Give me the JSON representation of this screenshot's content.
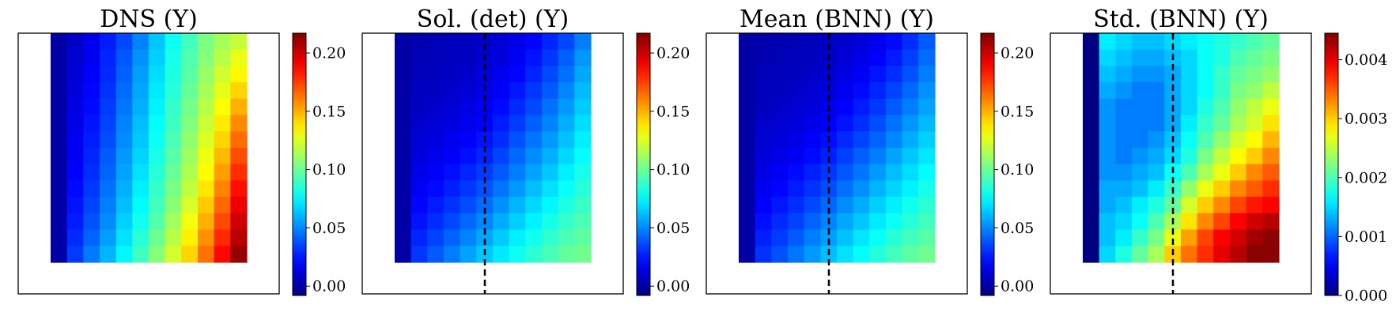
{
  "chart_data": [
    {
      "type": "heatmap",
      "title": "DNS (Y)",
      "grid_rows": 14,
      "grid_cols": 12,
      "colormap": "jet",
      "dashed_vertical_line": false,
      "colorbar": {
        "range": [
          -0.008,
          0.217
        ],
        "ticks": [
          "0.00",
          "0.05",
          "0.10",
          "0.15",
          "0.20"
        ],
        "tick_values": [
          0.0,
          0.05,
          0.1,
          0.15,
          0.2
        ]
      },
      "values": [
        [
          0.0,
          0.008,
          0.016,
          0.026,
          0.036,
          0.049,
          0.064,
          0.079,
          0.091,
          0.104,
          0.113,
          0.12
        ],
        [
          0.0,
          0.01,
          0.017,
          0.028,
          0.039,
          0.052,
          0.066,
          0.081,
          0.094,
          0.106,
          0.117,
          0.128
        ],
        [
          0.0,
          0.011,
          0.019,
          0.029,
          0.041,
          0.055,
          0.069,
          0.083,
          0.096,
          0.11,
          0.122,
          0.134
        ],
        [
          0.0,
          0.012,
          0.021,
          0.031,
          0.044,
          0.057,
          0.072,
          0.085,
          0.099,
          0.113,
          0.127,
          0.142
        ],
        [
          0.0,
          0.014,
          0.022,
          0.033,
          0.046,
          0.059,
          0.074,
          0.088,
          0.102,
          0.117,
          0.132,
          0.15
        ],
        [
          0.0,
          0.015,
          0.024,
          0.035,
          0.049,
          0.062,
          0.077,
          0.09,
          0.105,
          0.121,
          0.137,
          0.158
        ],
        [
          0.0,
          0.017,
          0.026,
          0.037,
          0.051,
          0.064,
          0.079,
          0.093,
          0.108,
          0.125,
          0.142,
          0.165
        ],
        [
          0.0,
          0.018,
          0.028,
          0.04,
          0.054,
          0.067,
          0.082,
          0.096,
          0.111,
          0.129,
          0.148,
          0.172
        ],
        [
          0.0,
          0.02,
          0.03,
          0.042,
          0.056,
          0.07,
          0.085,
          0.099,
          0.115,
          0.133,
          0.154,
          0.179
        ],
        [
          0.0,
          0.022,
          0.032,
          0.045,
          0.059,
          0.073,
          0.088,
          0.103,
          0.119,
          0.138,
          0.16,
          0.186
        ],
        [
          0.0,
          0.024,
          0.035,
          0.048,
          0.062,
          0.076,
          0.091,
          0.107,
          0.124,
          0.144,
          0.166,
          0.193
        ],
        [
          0.0,
          0.026,
          0.038,
          0.051,
          0.066,
          0.08,
          0.095,
          0.112,
          0.13,
          0.15,
          0.173,
          0.199
        ],
        [
          0.0,
          0.029,
          0.042,
          0.055,
          0.07,
          0.085,
          0.1,
          0.117,
          0.136,
          0.157,
          0.18,
          0.205
        ],
        [
          0.0,
          0.033,
          0.047,
          0.06,
          0.075,
          0.09,
          0.106,
          0.123,
          0.142,
          0.164,
          0.188,
          0.212
        ]
      ]
    },
    {
      "type": "heatmap",
      "title": "Sol. (det) (Y)",
      "grid_rows": 14,
      "grid_cols": 12,
      "colormap": "jet",
      "dashed_vertical_line": true,
      "colorbar": {
        "range": [
          -0.008,
          0.217
        ],
        "ticks": [
          "0.00",
          "0.05",
          "0.10",
          "0.15",
          "0.20"
        ],
        "tick_values": [
          0.0,
          0.05,
          0.1,
          0.15,
          0.2
        ]
      },
      "values": [
        [
          0.0,
          0.003,
          0.004,
          0.005,
          0.006,
          0.008,
          0.011,
          0.015,
          0.021,
          0.028,
          0.036,
          0.048
        ],
        [
          0.0,
          0.004,
          0.005,
          0.006,
          0.007,
          0.01,
          0.013,
          0.018,
          0.024,
          0.032,
          0.041,
          0.053
        ],
        [
          0.0,
          0.005,
          0.006,
          0.007,
          0.009,
          0.012,
          0.016,
          0.021,
          0.028,
          0.036,
          0.045,
          0.057
        ],
        [
          0.0,
          0.006,
          0.007,
          0.009,
          0.011,
          0.014,
          0.019,
          0.025,
          0.032,
          0.04,
          0.05,
          0.061
        ],
        [
          0.0,
          0.007,
          0.009,
          0.011,
          0.014,
          0.017,
          0.022,
          0.029,
          0.036,
          0.045,
          0.054,
          0.065
        ],
        [
          0.0,
          0.009,
          0.011,
          0.013,
          0.016,
          0.02,
          0.026,
          0.033,
          0.041,
          0.049,
          0.059,
          0.069
        ],
        [
          0.0,
          0.011,
          0.013,
          0.016,
          0.02,
          0.024,
          0.03,
          0.038,
          0.046,
          0.054,
          0.063,
          0.073
        ],
        [
          0.0,
          0.013,
          0.016,
          0.019,
          0.023,
          0.028,
          0.035,
          0.043,
          0.051,
          0.059,
          0.068,
          0.077
        ],
        [
          0.0,
          0.015,
          0.019,
          0.023,
          0.028,
          0.033,
          0.04,
          0.048,
          0.056,
          0.064,
          0.073,
          0.081
        ],
        [
          0.0,
          0.018,
          0.022,
          0.027,
          0.032,
          0.038,
          0.046,
          0.054,
          0.062,
          0.07,
          0.078,
          0.085
        ],
        [
          0.0,
          0.021,
          0.026,
          0.031,
          0.037,
          0.044,
          0.052,
          0.06,
          0.068,
          0.075,
          0.083,
          0.089
        ],
        [
          0.0,
          0.024,
          0.03,
          0.036,
          0.043,
          0.05,
          0.058,
          0.066,
          0.074,
          0.081,
          0.088,
          0.093
        ],
        [
          0.0,
          0.028,
          0.035,
          0.042,
          0.049,
          0.057,
          0.065,
          0.073,
          0.08,
          0.087,
          0.093,
          0.097
        ],
        [
          0.0,
          0.032,
          0.04,
          0.048,
          0.056,
          0.064,
          0.072,
          0.079,
          0.086,
          0.092,
          0.098,
          0.101
        ]
      ]
    },
    {
      "type": "heatmap",
      "title": "Mean (BNN) (Y)",
      "grid_rows": 14,
      "grid_cols": 12,
      "colormap": "jet",
      "dashed_vertical_line": true,
      "colorbar": {
        "range": [
          -0.008,
          0.217
        ],
        "ticks": [
          "0.00",
          "0.05",
          "0.10",
          "0.15",
          "0.20"
        ],
        "tick_values": [
          0.0,
          0.05,
          0.1,
          0.15,
          0.2
        ]
      },
      "values": [
        [
          0.0,
          0.002,
          0.003,
          0.004,
          0.005,
          0.007,
          0.009,
          0.012,
          0.016,
          0.022,
          0.03,
          0.04
        ],
        [
          0.0,
          0.003,
          0.004,
          0.005,
          0.006,
          0.008,
          0.011,
          0.015,
          0.02,
          0.026,
          0.034,
          0.044
        ],
        [
          0.0,
          0.004,
          0.005,
          0.006,
          0.008,
          0.01,
          0.014,
          0.018,
          0.024,
          0.03,
          0.038,
          0.048
        ],
        [
          0.0,
          0.005,
          0.006,
          0.008,
          0.01,
          0.013,
          0.017,
          0.022,
          0.028,
          0.035,
          0.043,
          0.052
        ],
        [
          0.0,
          0.006,
          0.008,
          0.01,
          0.012,
          0.016,
          0.02,
          0.026,
          0.032,
          0.04,
          0.048,
          0.056
        ],
        [
          0.0,
          0.008,
          0.01,
          0.012,
          0.015,
          0.019,
          0.024,
          0.03,
          0.037,
          0.045,
          0.053,
          0.061
        ],
        [
          0.0,
          0.01,
          0.012,
          0.015,
          0.019,
          0.023,
          0.029,
          0.035,
          0.042,
          0.05,
          0.058,
          0.066
        ],
        [
          0.0,
          0.012,
          0.015,
          0.018,
          0.022,
          0.027,
          0.034,
          0.041,
          0.048,
          0.056,
          0.064,
          0.071
        ],
        [
          0.0,
          0.014,
          0.018,
          0.022,
          0.027,
          0.032,
          0.039,
          0.046,
          0.054,
          0.062,
          0.069,
          0.076
        ],
        [
          0.0,
          0.017,
          0.021,
          0.026,
          0.031,
          0.037,
          0.045,
          0.052,
          0.06,
          0.067,
          0.074,
          0.081
        ],
        [
          0.0,
          0.02,
          0.025,
          0.03,
          0.036,
          0.043,
          0.051,
          0.058,
          0.066,
          0.073,
          0.08,
          0.086
        ],
        [
          0.0,
          0.023,
          0.029,
          0.035,
          0.042,
          0.049,
          0.057,
          0.064,
          0.072,
          0.079,
          0.085,
          0.091
        ],
        [
          0.0,
          0.027,
          0.033,
          0.04,
          0.048,
          0.055,
          0.063,
          0.071,
          0.078,
          0.085,
          0.091,
          0.096
        ],
        [
          0.0,
          0.031,
          0.038,
          0.046,
          0.054,
          0.062,
          0.07,
          0.077,
          0.084,
          0.091,
          0.097,
          0.101
        ]
      ]
    },
    {
      "type": "heatmap",
      "title": "Std. (BNN) (Y)",
      "grid_rows": 14,
      "grid_cols": 12,
      "colormap": "jet",
      "dashed_vertical_line": true,
      "colorbar": {
        "range": [
          0.0,
          0.00445
        ],
        "ticks": [
          "0.000",
          "0.001",
          "0.002",
          "0.003",
          "0.004"
        ],
        "tick_values": [
          0.0,
          0.001,
          0.002,
          0.003,
          0.004
        ]
      },
      "values": [
        [
          0.0,
          0.0016,
          0.0015,
          0.0014,
          0.0014,
          0.0015,
          0.0016,
          0.0017,
          0.0018,
          0.0019,
          0.002,
          0.0021
        ],
        [
          0.0,
          0.0015,
          0.0014,
          0.0013,
          0.0013,
          0.0014,
          0.0015,
          0.0017,
          0.0018,
          0.002,
          0.0021,
          0.0022
        ],
        [
          0.0,
          0.0014,
          0.0013,
          0.0012,
          0.0012,
          0.0013,
          0.0015,
          0.0017,
          0.0019,
          0.0021,
          0.0022,
          0.0023
        ],
        [
          0.0,
          0.0013,
          0.0012,
          0.0011,
          0.0011,
          0.0013,
          0.0015,
          0.0017,
          0.0019,
          0.0022,
          0.0023,
          0.0025
        ],
        [
          0.0,
          0.0012,
          0.0011,
          0.0011,
          0.0011,
          0.0013,
          0.0015,
          0.0018,
          0.002,
          0.0023,
          0.0025,
          0.0027
        ],
        [
          0.0,
          0.0012,
          0.0011,
          0.0011,
          0.0011,
          0.0013,
          0.0016,
          0.0019,
          0.0021,
          0.0024,
          0.0026,
          0.0029
        ],
        [
          0.0,
          0.0012,
          0.0011,
          0.0011,
          0.0012,
          0.0014,
          0.0017,
          0.002,
          0.0023,
          0.0026,
          0.0028,
          0.0031
        ],
        [
          0.0,
          0.0012,
          0.0011,
          0.0012,
          0.0013,
          0.0015,
          0.0018,
          0.0022,
          0.0025,
          0.0028,
          0.003,
          0.0033
        ],
        [
          0.0,
          0.0012,
          0.0012,
          0.0013,
          0.0014,
          0.0017,
          0.002,
          0.0024,
          0.0027,
          0.003,
          0.0033,
          0.0035
        ],
        [
          0.0,
          0.0013,
          0.0013,
          0.0014,
          0.0016,
          0.0019,
          0.0023,
          0.0027,
          0.003,
          0.0033,
          0.0035,
          0.0037
        ],
        [
          0.0,
          0.0013,
          0.0014,
          0.0016,
          0.0018,
          0.0021,
          0.0026,
          0.003,
          0.0033,
          0.0036,
          0.0038,
          0.0039
        ],
        [
          0.0,
          0.0014,
          0.0015,
          0.0017,
          0.002,
          0.0024,
          0.0029,
          0.0033,
          0.0036,
          0.0039,
          0.0041,
          0.0042
        ],
        [
          0.0,
          0.0014,
          0.0016,
          0.0019,
          0.0022,
          0.0027,
          0.0032,
          0.0036,
          0.0039,
          0.0041,
          0.0043,
          0.0044
        ],
        [
          0.0,
          0.0015,
          0.0018,
          0.0021,
          0.0024,
          0.003,
          0.0034,
          0.0037,
          0.004,
          0.0042,
          0.0044,
          0.0044
        ]
      ]
    }
  ]
}
